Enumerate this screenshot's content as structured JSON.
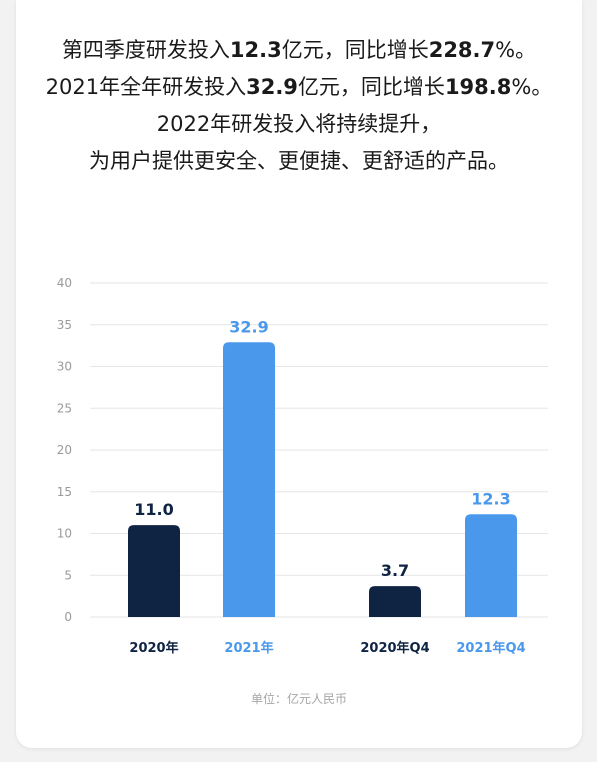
{
  "headline": {
    "line1": {
      "a": "第四季度研发投入",
      "b": "12.3",
      "c": "亿元，同比增长",
      "d": "228.7",
      "e": "%。"
    },
    "line2": {
      "a": "2021年全年研发投入",
      "b": "32.9",
      "c": "亿元，同比增长",
      "d": "198.8",
      "e": "%。"
    },
    "line3": "2022年研发投入将持续提升，",
    "line4": "为用户提供更安全、更便捷、更舒适的产品。"
  },
  "unit_note": "单位：亿元人民币",
  "colors": {
    "dark": "#0f2343",
    "light": "#4a98ec",
    "grid": "#e6e6e6",
    "axis_text": "#9a9a9a"
  },
  "chart_data": {
    "type": "bar",
    "categories": [
      "2020年",
      "2021年",
      "2020年Q4",
      "2021年Q4"
    ],
    "values": [
      11.0,
      32.9,
      3.7,
      12.3
    ],
    "value_labels": [
      "11.0",
      "32.9",
      "3.7",
      "12.3"
    ],
    "bar_colors": [
      "dark",
      "light",
      "dark",
      "light"
    ],
    "yticks": [
      "0",
      "5",
      "10",
      "15",
      "20",
      "25",
      "30",
      "35",
      "40"
    ],
    "ylim": [
      0,
      40
    ],
    "grid": true
  }
}
